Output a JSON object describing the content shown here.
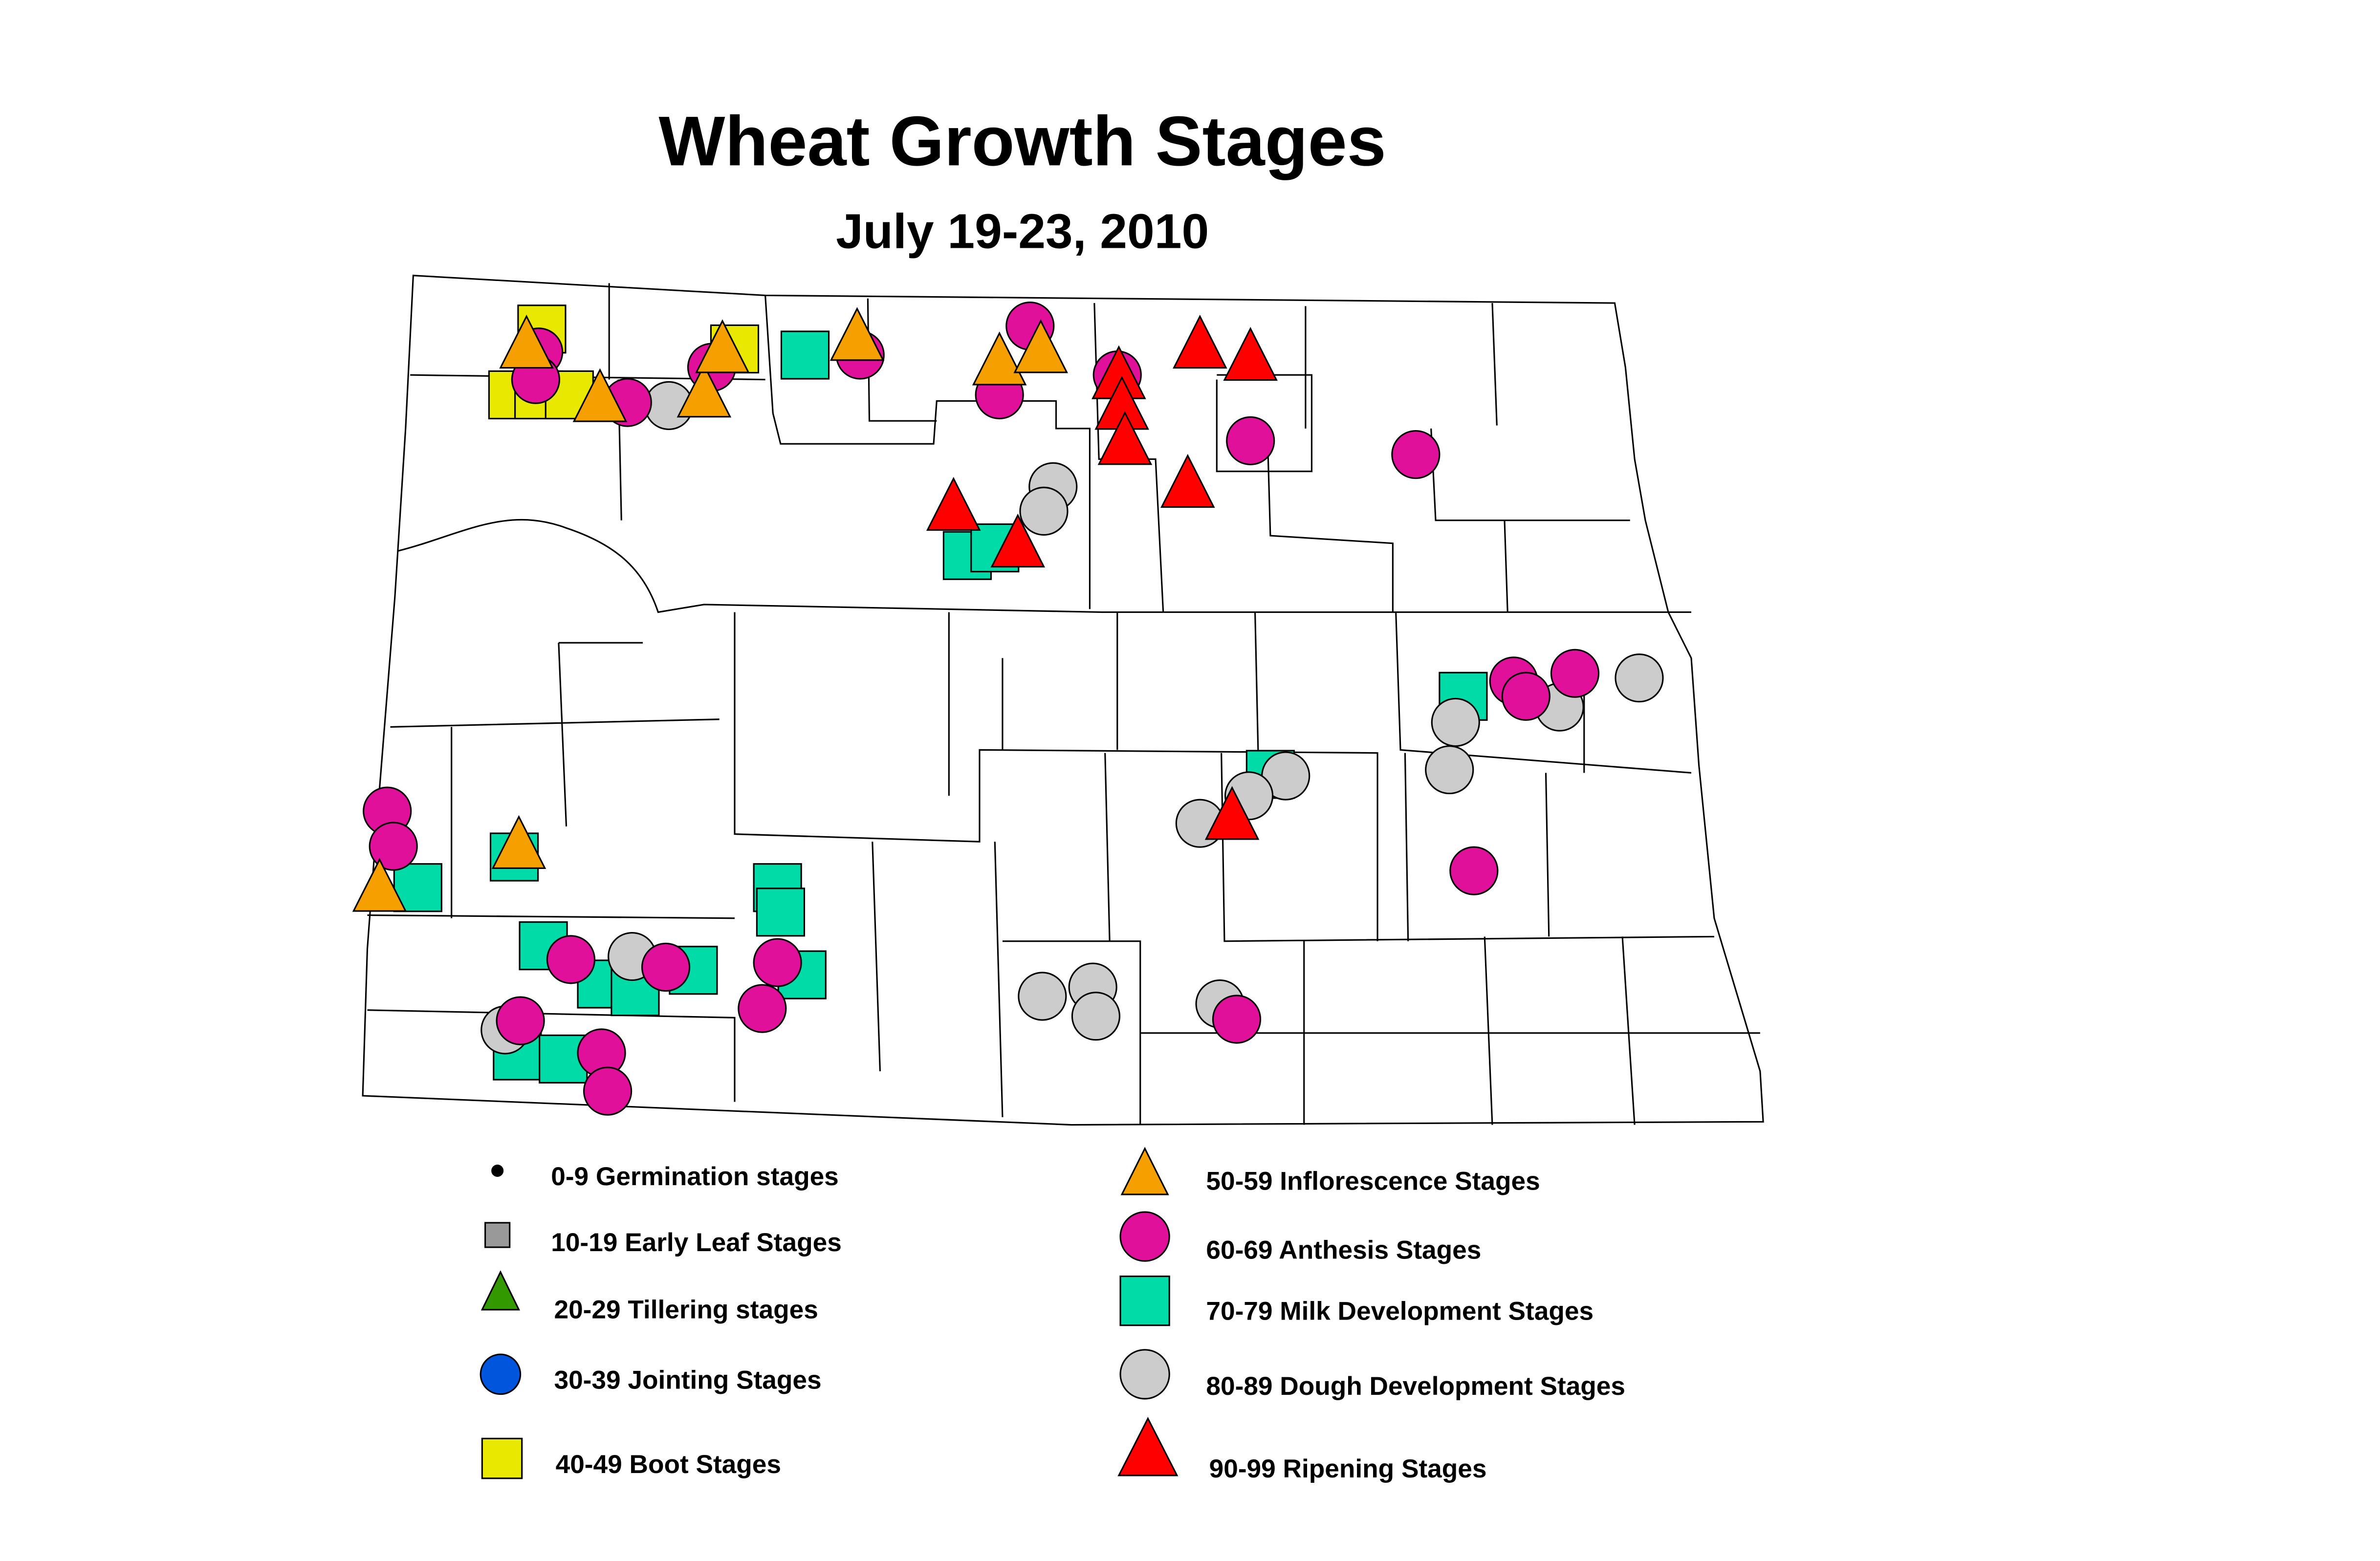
{
  "title": "Wheat Growth Stages",
  "subtitle": "July 19-23, 2010",
  "legend": [
    {
      "label": "0-9 Germination stages",
      "shape": "dot",
      "color": "#000000"
    },
    {
      "label": "10-19 Early Leaf Stages",
      "shape": "small-square",
      "color": "#999999"
    },
    {
      "label": "20-29 Tillering stages",
      "shape": "triangle",
      "color": "#339900"
    },
    {
      "label": "30-39 Jointing Stages",
      "shape": "circle",
      "color": "#0055dd"
    },
    {
      "label": "40-49 Boot Stages",
      "shape": "square",
      "color": "#e8e800"
    },
    {
      "label": "50-59 Inflorescence Stages",
      "shape": "triangle",
      "color": "#f5a000"
    },
    {
      "label": "60-69 Anthesis Stages",
      "shape": "circle",
      "color": "#e0109a"
    },
    {
      "label": "70-79 Milk Development Stages",
      "shape": "square",
      "color": "#00dba8"
    },
    {
      "label": "80-89 Dough Development Stages",
      "shape": "circle",
      "color": "#cccccc"
    },
    {
      "label": "90-99 Ripening Stages",
      "shape": "triangle",
      "color": "#ff0000"
    }
  ]
}
